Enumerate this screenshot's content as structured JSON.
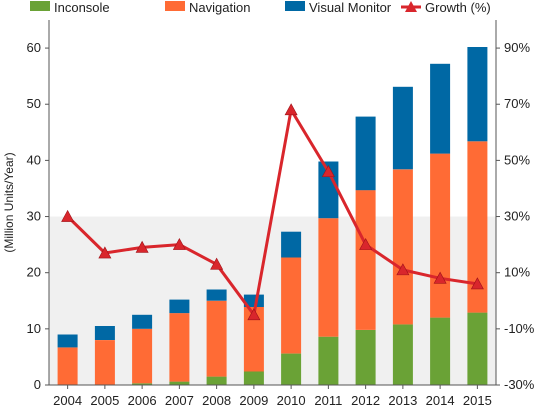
{
  "chart_data": {
    "type": "bar",
    "categories": [
      "2004",
      "2005",
      "2006",
      "2007",
      "2008",
      "2009",
      "2010",
      "2011",
      "2012",
      "2013",
      "2014",
      "2015"
    ],
    "series": [
      {
        "name": "Inconsole",
        "kind": "stacked-bar",
        "color": "#6aa236",
        "values": [
          0.0,
          0.1,
          0.3,
          0.6,
          1.5,
          2.4,
          5.6,
          8.6,
          9.8,
          10.8,
          12.0,
          12.9
        ]
      },
      {
        "name": "Navigation",
        "kind": "stacked-bar",
        "color": "#ff6b35",
        "values": [
          6.7,
          7.9,
          9.7,
          12.2,
          13.5,
          11.5,
          17.1,
          21.1,
          24.9,
          27.6,
          29.2,
          30.5
        ]
      },
      {
        "name": "Visual Monitor",
        "kind": "stacked-bar",
        "color": "#0068a4",
        "values": [
          2.3,
          2.5,
          2.5,
          2.4,
          2.0,
          2.2,
          4.6,
          10.1,
          13.1,
          14.7,
          16.0,
          16.8
        ]
      },
      {
        "name": "Growth (%)",
        "kind": "line",
        "axis": "right",
        "color": "#d9262c",
        "values": [
          30,
          17,
          19,
          20,
          13,
          -5,
          68,
          46,
          20,
          11,
          8,
          6
        ]
      }
    ],
    "ylabel": "(Million Units/Year)",
    "ylim": [
      0,
      65
    ],
    "yticks": [
      "0",
      "10",
      "20",
      "30",
      "40",
      "50",
      "60"
    ],
    "y2lim": [
      -30,
      100
    ],
    "y2ticks": [
      "-30%",
      "-10%",
      "10%",
      "30%",
      "50%",
      "70%",
      "90%"
    ],
    "legend": "top",
    "grid": false,
    "background_band": {
      "from": 0,
      "to": 30,
      "color": "#f0f0f0"
    }
  }
}
